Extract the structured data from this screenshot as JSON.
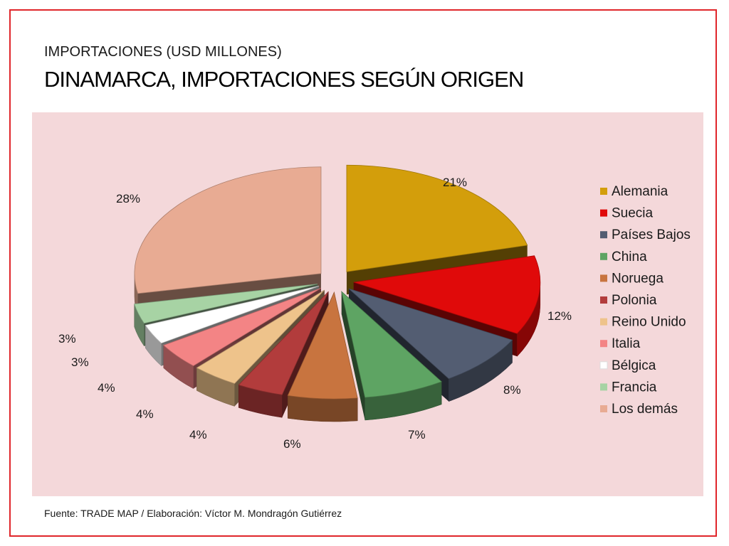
{
  "header": {
    "subtitle": "IMPORTACIONES (USD MILLONES)",
    "title": "DINAMARCA, IMPORTACIONES SEGÚN ORIGEN"
  },
  "chart_data": {
    "type": "pie",
    "exploded": true,
    "three_d": true,
    "background": "#f4d8da",
    "legend_position": "right",
    "categories": [
      "Alemania",
      "Suecia",
      "Países Bajos",
      "China",
      "Noruega",
      "Polonia",
      "Reino Unido",
      "Italia",
      "Bélgica",
      "Francia",
      "Los demás"
    ],
    "values": [
      21,
      12,
      8,
      7,
      6,
      4,
      4,
      4,
      3,
      3,
      28
    ],
    "labels": [
      "21%",
      "12%",
      "8%",
      "7%",
      "6%",
      "4%",
      "4%",
      "4%",
      "3%",
      "3%",
      "28%"
    ],
    "colors": [
      "#d39e0b",
      "#e00a0a",
      "#535d72",
      "#5ea463",
      "#c8743f",
      "#b23c3c",
      "#eec38b",
      "#f38485",
      "#ffffff",
      "#a7d3a4",
      "#e8ab93"
    ]
  },
  "footer": {
    "source": "Fuente: TRADE MAP / Elaboración: Víctor M. Mondragón Gutiérrez"
  }
}
